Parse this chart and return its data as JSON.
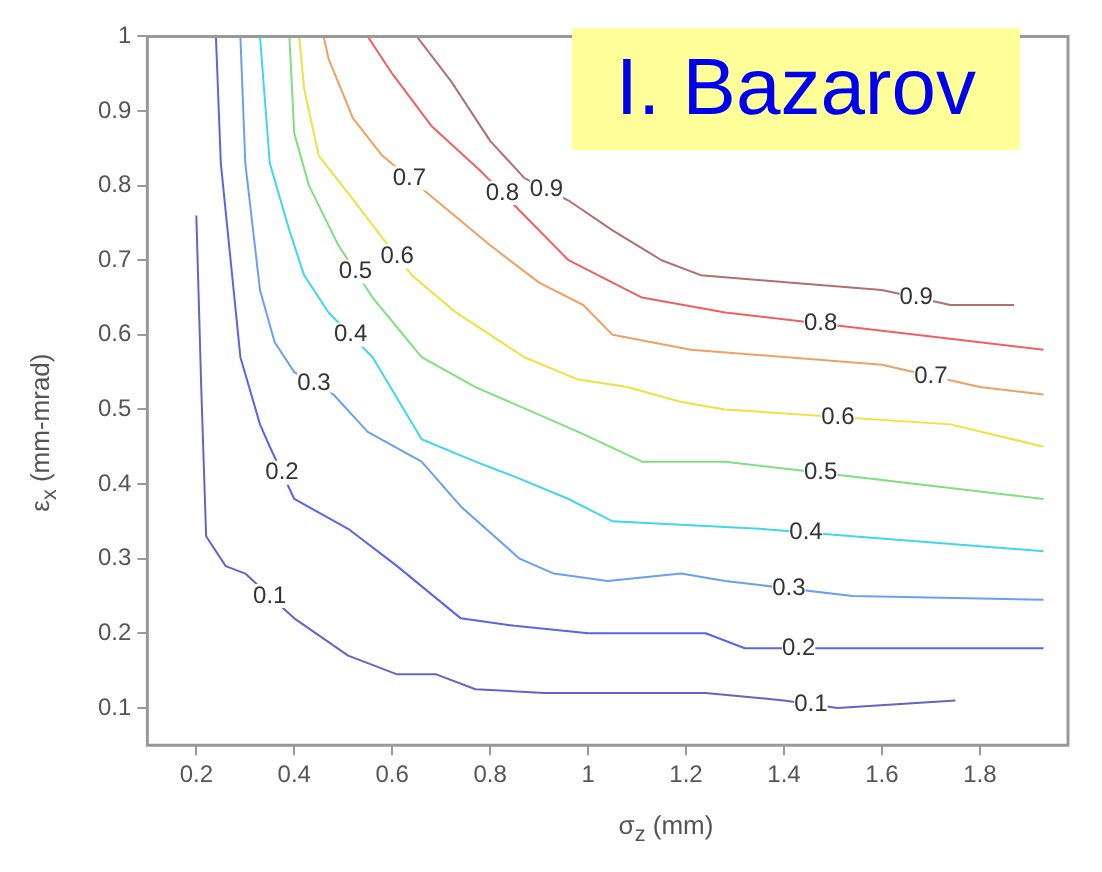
{
  "chart_data": {
    "type": "line",
    "xlabel": "σ$_{z}$ (mm)",
    "ylabel": "ε$_{x}$ (mm-mrad)",
    "annotations": [
      "I. Bazarov"
    ],
    "xlim": [
      0.1,
      1.98
    ],
    "xticks": [
      0.2,
      0.4,
      0.6,
      0.8,
      1,
      1.2,
      1.4,
      1.6,
      1.8
    ],
    "ylim": [
      0.05,
      1
    ],
    "yticks": [
      0.1,
      0.2,
      0.3,
      0.4,
      0.5,
      0.6,
      0.7,
      0.8,
      0.9,
      1
    ],
    "grid": false,
    "legend": false,
    "marker": "none",
    "line_style": "solid",
    "series": [
      {
        "name": "0.1",
        "color": "#6464c8",
        "x": [
          0.2,
          0.21,
          0.22,
          0.26,
          0.3,
          0.4,
          0.51,
          0.61,
          0.69,
          0.77,
          0.91,
          1.24,
          1.4,
          1.51,
          1.75
        ],
        "values": [
          0.76,
          0.53,
          0.33,
          0.29,
          0.28,
          0.22,
          0.17,
          0.145,
          0.145,
          0.125,
          0.12,
          0.12,
          0.11,
          0.1,
          0.11
        ]
      },
      {
        "name": "0.2",
        "color": "#5a64e6",
        "x": [
          0.24,
          0.25,
          0.29,
          0.33,
          0.35,
          0.4,
          0.51,
          0.61,
          0.74,
          0.85,
          1.0,
          1.24,
          1.32,
          1.54,
          1.93
        ],
        "values": [
          1.0,
          0.83,
          0.57,
          0.48,
          0.45,
          0.38,
          0.34,
          0.29,
          0.22,
          0.21,
          0.2,
          0.2,
          0.18,
          0.18,
          0.18
        ]
      },
      {
        "name": "0.3",
        "color": "#6aa0f0",
        "x": [
          0.29,
          0.3,
          0.33,
          0.36,
          0.4,
          0.48,
          0.55,
          0.66,
          0.74,
          0.86,
          0.93,
          1.04,
          1.19,
          1.28,
          1.54,
          1.93
        ],
        "values": [
          1.0,
          0.83,
          0.66,
          0.59,
          0.55,
          0.52,
          0.47,
          0.43,
          0.37,
          0.3,
          0.28,
          0.27,
          0.28,
          0.27,
          0.25,
          0.245
        ]
      },
      {
        "name": "0.4",
        "color": "#40d8e8",
        "x": [
          0.33,
          0.35,
          0.39,
          0.42,
          0.47,
          0.56,
          0.66,
          0.77,
          0.85,
          0.96,
          1.05,
          1.35,
          1.54,
          1.93
        ],
        "values": [
          1.0,
          0.83,
          0.74,
          0.68,
          0.63,
          0.57,
          0.46,
          0.43,
          0.41,
          0.38,
          0.35,
          0.34,
          0.33,
          0.31
        ]
      },
      {
        "name": "0.5",
        "color": "#80e080",
        "x": [
          0.39,
          0.4,
          0.43,
          0.49,
          0.56,
          0.66,
          0.77,
          0.98,
          1.11,
          1.28,
          1.67,
          1.93
        ],
        "values": [
          1.0,
          0.87,
          0.8,
          0.72,
          0.65,
          0.57,
          0.53,
          0.47,
          0.43,
          0.43,
          0.4,
          0.38
        ]
      },
      {
        "name": "0.6",
        "color": "#f0e040",
        "x": [
          0.41,
          0.42,
          0.45,
          0.51,
          0.58,
          0.64,
          0.73,
          0.87,
          0.98,
          1.08,
          1.19,
          1.28,
          1.74,
          1.93
        ],
        "values": [
          1.0,
          0.93,
          0.84,
          0.79,
          0.73,
          0.68,
          0.63,
          0.57,
          0.54,
          0.53,
          0.51,
          0.5,
          0.48,
          0.45
        ]
      },
      {
        "name": "0.7",
        "color": "#f0a060",
        "x": [
          0.46,
          0.47,
          0.52,
          0.58,
          0.69,
          0.8,
          0.9,
          0.99,
          1.05,
          1.21,
          1.6,
          1.8,
          1.93
        ],
        "values": [
          1.0,
          0.97,
          0.89,
          0.84,
          0.78,
          0.72,
          0.67,
          0.64,
          0.6,
          0.58,
          0.56,
          0.53,
          0.52
        ]
      },
      {
        "name": "0.8",
        "color": "#f06060",
        "x": [
          0.55,
          0.6,
          0.68,
          0.78,
          0.87,
          0.96,
          1.11,
          1.28,
          1.67,
          1.93
        ],
        "values": [
          1.0,
          0.95,
          0.88,
          0.82,
          0.76,
          0.7,
          0.65,
          0.63,
          0.6,
          0.58
        ]
      },
      {
        "name": "0.9",
        "color": "#b07070",
        "x": [
          0.65,
          0.72,
          0.8,
          0.87,
          0.96,
          1.05,
          1.15,
          1.23,
          1.41,
          1.6,
          1.74,
          1.87
        ],
        "values": [
          1.0,
          0.94,
          0.86,
          0.81,
          0.78,
          0.74,
          0.7,
          0.68,
          0.67,
          0.66,
          0.64,
          0.64
        ]
      }
    ]
  }
}
